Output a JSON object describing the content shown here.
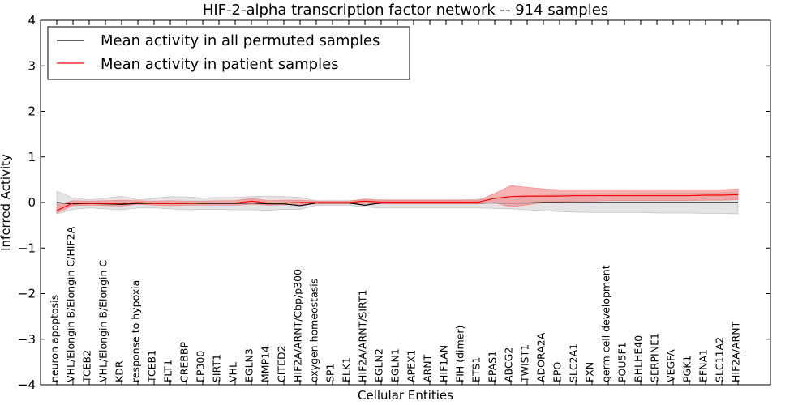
{
  "chart_data": {
    "type": "line",
    "title": "HIF-2-alpha transcription factor network -- 914 samples",
    "xlabel": "Cellular Entities",
    "ylabel": "Inferred Activity",
    "ylim": [
      -4,
      4
    ],
    "yticks": [
      -4,
      -3,
      -2,
      -1,
      0,
      1,
      2,
      3,
      4
    ],
    "ytick_labels": [
      "−4",
      "−3",
      "−2",
      "−1",
      "0",
      "1",
      "2",
      "3",
      "4"
    ],
    "legend_position": "top-left",
    "categories": [
      "neuron apoptosis",
      "VHL/Elongin B/Elongin C/HIF2A",
      "TCEB2",
      "VHL/Elongin B/Elongin C",
      "KDR",
      "response to hypoxia",
      "TCEB1",
      "FLT1",
      "CREBBP",
      "EP300",
      "SIRT1",
      "VHL",
      "EGLN3",
      "MMP14",
      "CITED2",
      "HIF2A/ARNT/Cbp/p300",
      "oxygen homeostasis",
      "SP1",
      "ELK1",
      "HIF2A/ARNT/SIRT1",
      "EGLN2",
      "EGLN1",
      "APEX1",
      "ARNT",
      "HIF1AN",
      "FIH (dimer)",
      "ETS1",
      "EPAS1",
      "ABCG2",
      "TWIST1",
      "ADORA2A",
      "EPO",
      "SLC2A1",
      "FXN",
      "germ cell development",
      "POU5F1",
      "BHLHE40",
      "SERPINE1",
      "VEGFA",
      "PGK1",
      "EFNA1",
      "SLC11A2",
      "HIF2A/ARNT"
    ],
    "series": [
      {
        "name": "Mean activity in all permuted samples",
        "color": "#000000",
        "band_color": "#bbbbbb",
        "values": [
          0.0,
          -0.03,
          -0.02,
          -0.03,
          -0.04,
          -0.02,
          -0.02,
          -0.02,
          -0.02,
          -0.02,
          -0.02,
          -0.02,
          -0.01,
          -0.03,
          -0.03,
          -0.07,
          -0.01,
          -0.01,
          -0.01,
          -0.06,
          -0.01,
          -0.01,
          -0.01,
          -0.01,
          -0.01,
          -0.01,
          -0.01,
          -0.01,
          -0.01,
          -0.01,
          0.0,
          0.0,
          0.0,
          0.0,
          0.0,
          0.0,
          0.0,
          0.0,
          0.0,
          0.0,
          0.0,
          0.0,
          0.0
        ],
        "lower": [
          -0.25,
          -0.15,
          -0.12,
          -0.14,
          -0.16,
          -0.12,
          -0.12,
          -0.14,
          -0.16,
          -0.15,
          -0.15,
          -0.16,
          -0.16,
          -0.17,
          -0.15,
          -0.15,
          -0.06,
          -0.06,
          -0.06,
          -0.1,
          -0.12,
          -0.12,
          -0.12,
          -0.12,
          -0.12,
          -0.12,
          -0.12,
          -0.13,
          -0.14,
          -0.16,
          -0.18,
          -0.2,
          -0.21,
          -0.22,
          -0.22,
          -0.22,
          -0.22,
          -0.23,
          -0.23,
          -0.23,
          -0.24,
          -0.24,
          -0.25
        ],
        "upper": [
          0.25,
          0.1,
          0.06,
          0.09,
          0.14,
          0.06,
          0.09,
          0.13,
          0.12,
          0.1,
          0.11,
          0.11,
          0.13,
          0.13,
          0.13,
          0.11,
          0.04,
          0.04,
          0.04,
          0.05,
          0.06,
          0.06,
          0.06,
          0.06,
          0.06,
          0.06,
          0.07,
          0.08,
          0.1,
          0.12,
          0.15,
          0.17,
          0.18,
          0.19,
          0.19,
          0.2,
          0.2,
          0.2,
          0.21,
          0.21,
          0.21,
          0.21,
          0.22
        ]
      },
      {
        "name": "Mean activity in patient samples",
        "color": "#ff0000",
        "band_color": "#f08080",
        "values": [
          -0.18,
          -0.01,
          -0.02,
          -0.02,
          -0.02,
          0.0,
          -0.02,
          -0.02,
          -0.02,
          -0.01,
          -0.01,
          -0.01,
          0.03,
          -0.01,
          -0.01,
          0.0,
          0.0,
          0.0,
          0.0,
          0.03,
          0.01,
          0.01,
          0.01,
          0.01,
          0.01,
          0.01,
          0.01,
          0.09,
          0.13,
          0.14,
          0.14,
          0.14,
          0.15,
          0.15,
          0.15,
          0.15,
          0.15,
          0.15,
          0.15,
          0.15,
          0.16,
          0.16,
          0.17
        ],
        "lower": [
          -0.23,
          -0.07,
          -0.06,
          -0.07,
          -0.08,
          -0.04,
          -0.06,
          -0.07,
          -0.06,
          -0.06,
          -0.06,
          -0.06,
          -0.04,
          -0.06,
          -0.05,
          -0.05,
          -0.03,
          -0.03,
          -0.03,
          -0.02,
          -0.03,
          -0.03,
          -0.03,
          -0.03,
          -0.03,
          -0.03,
          -0.03,
          0.0,
          -0.1,
          -0.05,
          0.0,
          0.02,
          0.03,
          0.03,
          0.04,
          0.04,
          0.04,
          0.04,
          0.04,
          0.04,
          0.05,
          0.05,
          0.06
        ],
        "upper": [
          -0.05,
          0.04,
          0.03,
          0.04,
          0.05,
          0.04,
          0.03,
          0.04,
          0.03,
          0.03,
          0.04,
          0.04,
          0.09,
          0.04,
          0.05,
          0.05,
          0.03,
          0.03,
          0.03,
          0.08,
          0.05,
          0.05,
          0.05,
          0.05,
          0.05,
          0.05,
          0.05,
          0.2,
          0.37,
          0.33,
          0.3,
          0.28,
          0.28,
          0.28,
          0.28,
          0.28,
          0.28,
          0.28,
          0.28,
          0.28,
          0.28,
          0.28,
          0.3
        ]
      }
    ]
  }
}
